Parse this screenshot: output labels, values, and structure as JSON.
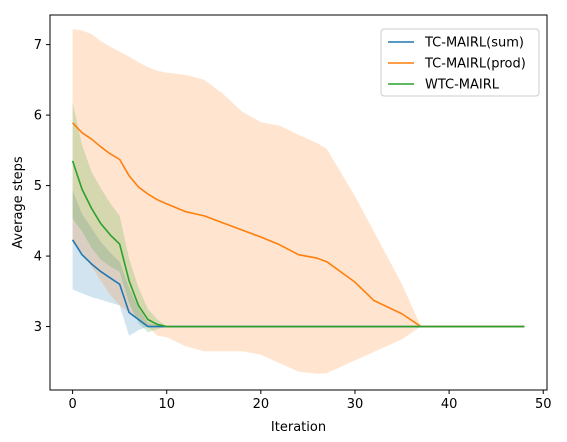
{
  "chart_data": {
    "type": "line",
    "title": "",
    "xlabel": "Iteration",
    "ylabel": "Average steps",
    "xlim": [
      -2.4,
      50.4
    ],
    "ylim": [
      2.1,
      7.42
    ],
    "xticks": [
      0,
      10,
      20,
      30,
      40,
      50
    ],
    "yticks": [
      3,
      4,
      5,
      6,
      7
    ],
    "grid": false,
    "legend_position": "top-right",
    "series": [
      {
        "name": "TC-MAIRL(sum)",
        "color": "#1f77b4",
        "band_color": "#1f77b4",
        "band_opacity": 0.2,
        "x": [
          0,
          1,
          2,
          3,
          4,
          5,
          6,
          7,
          8,
          9,
          10,
          12,
          15,
          20,
          25,
          30,
          35,
          40,
          45,
          48
        ],
        "y": [
          4.23,
          4.02,
          3.89,
          3.78,
          3.69,
          3.6,
          3.2,
          3.1,
          3.0,
          3.0,
          3.0,
          3.0,
          3.0,
          3.0,
          3.0,
          3.0,
          3.0,
          3.0,
          3.0,
          3.0
        ],
        "lower": [
          3.53,
          3.47,
          3.42,
          3.38,
          3.34,
          3.3,
          2.87,
          2.95,
          3.0,
          3.0,
          3.0,
          3.0,
          3.0,
          3.0,
          3.0,
          3.0,
          3.0,
          3.0,
          3.0,
          3.0
        ],
        "upper": [
          4.93,
          4.6,
          4.4,
          4.2,
          4.05,
          3.92,
          3.55,
          3.27,
          3.05,
          3.02,
          3.0,
          3.0,
          3.0,
          3.0,
          3.0,
          3.0,
          3.0,
          3.0,
          3.0,
          3.0
        ]
      },
      {
        "name": "TC-MAIRL(prod)",
        "color": "#ff7f0e",
        "band_color": "#ff7f0e",
        "band_opacity": 0.2,
        "x": [
          0,
          1,
          2,
          3,
          4,
          5,
          6,
          7,
          8,
          9,
          10,
          12,
          14,
          16,
          18,
          20,
          22,
          24,
          26,
          27,
          30,
          32,
          35,
          37,
          40,
          45,
          48
        ],
        "y": [
          5.89,
          5.75,
          5.66,
          5.55,
          5.45,
          5.37,
          5.14,
          4.98,
          4.88,
          4.8,
          4.74,
          4.63,
          4.57,
          4.47,
          4.37,
          4.27,
          4.16,
          4.02,
          3.97,
          3.92,
          3.63,
          3.37,
          3.18,
          3.0,
          3.0,
          3.0,
          3.0
        ],
        "lower": [
          4.2,
          4.05,
          3.85,
          3.65,
          3.45,
          3.3,
          3.2,
          3.1,
          3.0,
          2.87,
          2.85,
          2.72,
          2.65,
          2.65,
          2.65,
          2.6,
          2.48,
          2.36,
          2.33,
          2.34,
          2.52,
          2.64,
          2.82,
          3.0,
          3.0,
          3.0,
          3.0
        ],
        "upper": [
          7.22,
          7.2,
          7.15,
          7.05,
          6.97,
          6.9,
          6.83,
          6.75,
          6.68,
          6.63,
          6.6,
          6.57,
          6.5,
          6.3,
          6.05,
          5.9,
          5.85,
          5.72,
          5.6,
          5.52,
          4.85,
          4.35,
          3.6,
          3.0,
          3.0,
          3.0,
          3.0
        ]
      },
      {
        "name": "WTC-MAIRL",
        "color": "#2ca02c",
        "band_color": "#2ca02c",
        "band_opacity": 0.2,
        "x": [
          0,
          1,
          2,
          3,
          4,
          5,
          6,
          7,
          8,
          9,
          10,
          12,
          15,
          20,
          25,
          30,
          35,
          40,
          45,
          48
        ],
        "y": [
          5.35,
          4.95,
          4.68,
          4.46,
          4.3,
          4.17,
          3.65,
          3.3,
          3.1,
          3.03,
          3.0,
          3.0,
          3.0,
          3.0,
          3.0,
          3.0,
          3.0,
          3.0,
          3.0,
          3.0
        ],
        "lower": [
          4.53,
          4.35,
          4.12,
          3.95,
          3.85,
          3.78,
          3.33,
          3.05,
          2.92,
          2.96,
          3.0,
          3.0,
          3.0,
          3.0,
          3.0,
          3.0,
          3.0,
          3.0,
          3.0,
          3.0
        ],
        "upper": [
          6.18,
          5.58,
          5.2,
          4.96,
          4.75,
          4.57,
          3.97,
          3.55,
          3.25,
          3.1,
          3.0,
          3.0,
          3.0,
          3.0,
          3.0,
          3.0,
          3.0,
          3.0,
          3.0,
          3.0
        ]
      }
    ]
  }
}
